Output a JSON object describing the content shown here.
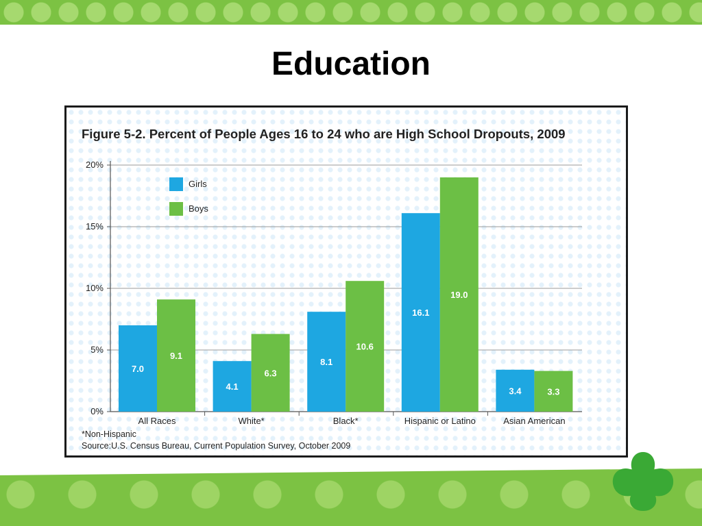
{
  "slide": {
    "title": "Education"
  },
  "colors": {
    "band": "#7cc243",
    "girls": "#1ea7e1",
    "boys": "#6cbf45",
    "trefoil": "#3aa935"
  },
  "icons": {
    "logo": "trefoil-icon"
  },
  "chart_data": {
    "type": "bar",
    "title": "Figure 5-2. Percent of People Ages 16 to 24 who are High School Dropouts, 2009",
    "categories": [
      "All Races",
      "White*",
      "Black*",
      "Hispanic or Latino",
      "Asian American"
    ],
    "series": [
      {
        "name": "Girls",
        "values": [
          7.0,
          4.1,
          8.1,
          16.1,
          3.4
        ],
        "labels": [
          "7.0",
          "4.1",
          "8.1",
          "16.1",
          "3.4"
        ]
      },
      {
        "name": "Boys",
        "values": [
          9.1,
          6.3,
          10.6,
          19.0,
          3.3
        ],
        "labels": [
          "9.1",
          "6.3",
          "10.6",
          "19.0",
          "3.3"
        ]
      }
    ],
    "ylim": [
      0,
      20
    ],
    "yticks": [
      0,
      5,
      10,
      15,
      20
    ],
    "ytick_labels": [
      "0%",
      "5%",
      "10%",
      "15%",
      "20%"
    ],
    "grid": true,
    "legend_position": "top-left",
    "footnote": "*Non-Hispanic",
    "source": "Source:U.S. Census Bureau, Current Population Survey, October 2009"
  }
}
